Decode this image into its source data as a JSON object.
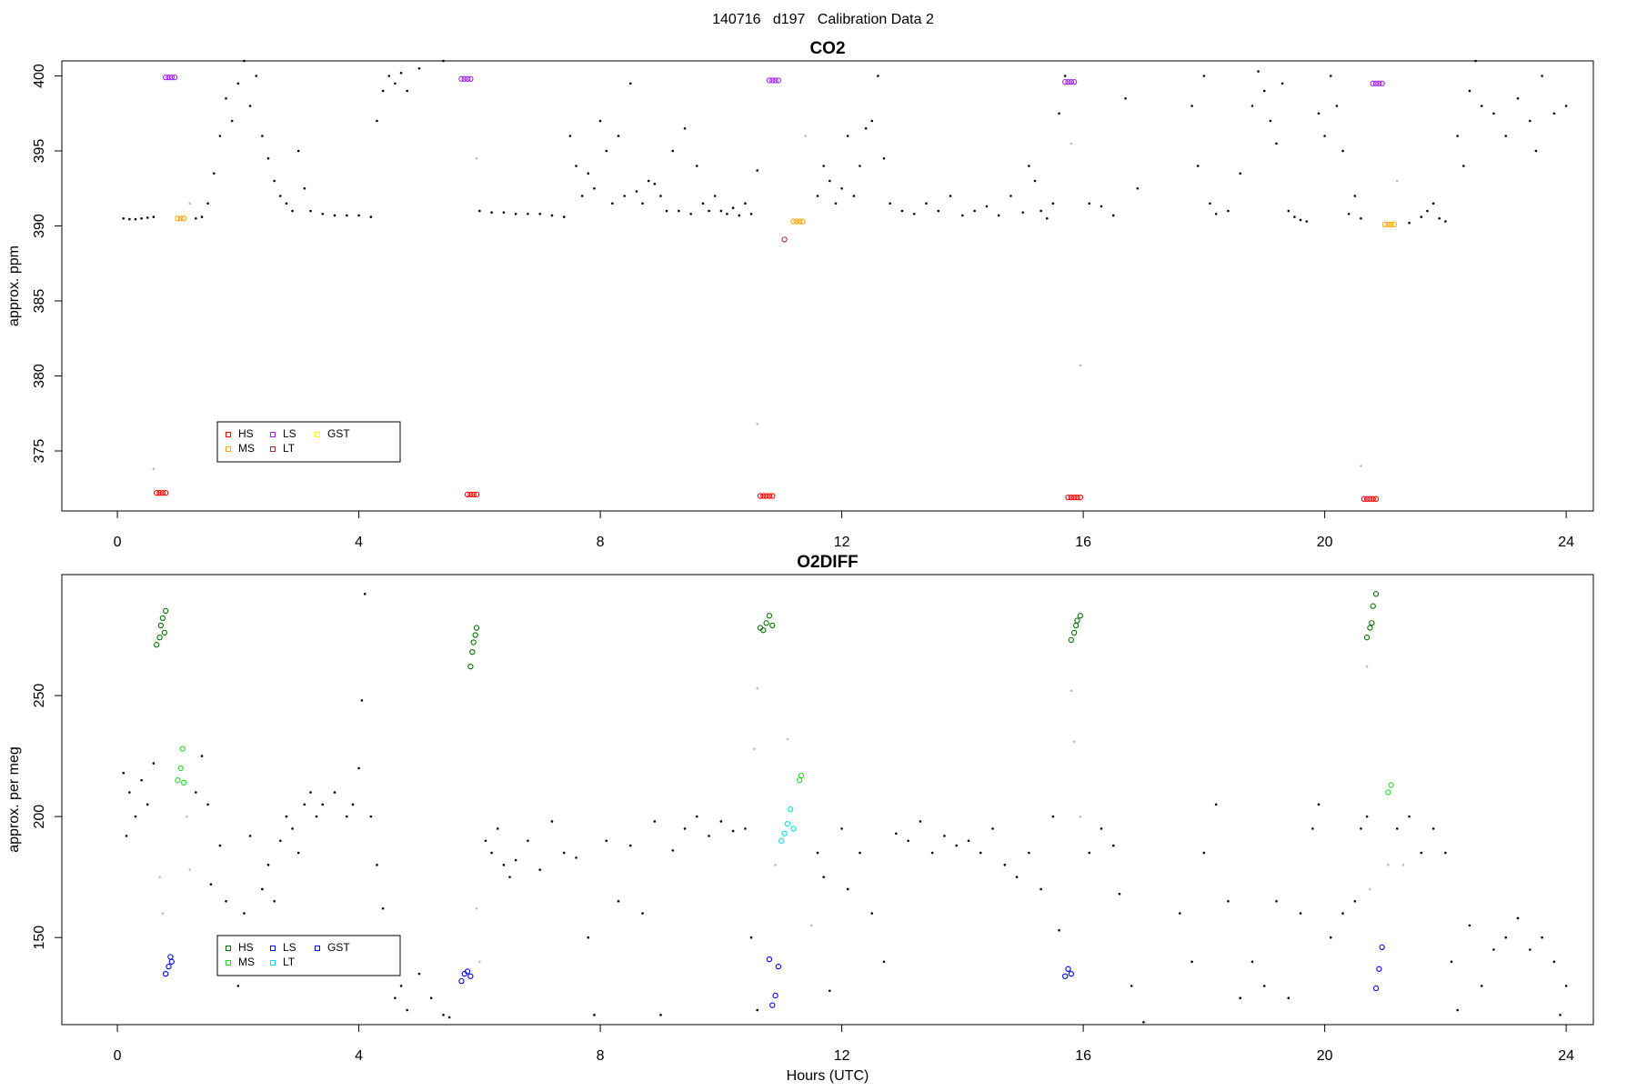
{
  "title": "140716   d197   Calibration Data 2",
  "chart_data": [
    {
      "type": "scatter",
      "title": "CO2",
      "ylabel": "approx. ppm",
      "xlim": [
        -0.92,
        24.45
      ],
      "xticks": [
        0,
        4,
        8,
        12,
        16,
        20,
        24
      ],
      "ylim": [
        371,
        401
      ],
      "yticks": [
        375,
        380,
        385,
        390,
        395,
        400
      ],
      "series": [
        {
          "color": "#000000",
          "x": [
            0.1,
            0.2,
            0.3,
            0.4,
            0.5,
            0.6,
            1.3,
            1.4,
            1.5,
            1.6,
            1.7,
            1.8,
            1.9,
            2.0,
            2.1,
            2.2,
            2.3,
            2.4,
            2.5,
            2.6,
            2.7,
            2.8,
            2.9,
            3.0,
            3.1,
            3.2,
            3.4,
            3.6,
            3.8,
            4.0,
            4.2,
            4.3,
            4.4,
            4.5,
            4.6,
            4.7,
            4.8,
            5.0,
            5.4,
            6.0,
            6.2,
            6.4,
            6.6,
            6.8,
            7.0,
            7.2,
            7.4,
            7.5,
            7.6,
            7.7,
            7.8,
            7.9,
            8.0,
            8.1,
            8.2,
            8.3,
            8.4,
            8.5,
            8.6,
            8.7,
            8.8,
            8.9,
            9.0,
            9.1,
            9.2,
            9.3,
            9.4,
            9.5,
            9.6,
            9.7,
            9.8,
            9.9,
            10.0,
            10.1,
            10.2,
            10.3,
            10.4,
            10.5,
            10.6,
            11.6,
            11.7,
            11.8,
            11.9,
            12.0,
            12.1,
            12.2,
            12.3,
            12.4,
            12.5,
            12.6,
            12.7,
            12.8,
            13.0,
            13.2,
            13.4,
            13.6,
            13.8,
            14.0,
            14.2,
            14.4,
            14.6,
            14.8,
            15.0,
            15.1,
            15.2,
            15.3,
            15.4,
            15.5,
            15.6,
            15.7,
            16.1,
            16.3,
            16.5,
            16.7,
            16.9,
            17.8,
            17.9,
            18.0,
            18.1,
            18.2,
            18.4,
            18.6,
            18.8,
            18.9,
            19.0,
            19.1,
            19.2,
            19.3,
            19.4,
            19.5,
            19.6,
            19.7,
            19.9,
            20.0,
            20.1,
            20.2,
            20.3,
            20.4,
            20.5,
            20.6,
            21.4,
            21.6,
            21.7,
            21.8,
            21.9,
            22.0,
            22.2,
            22.3,
            22.4,
            22.5,
            22.6,
            22.8,
            23.0,
            23.2,
            23.4,
            23.5,
            23.6,
            23.8,
            24.0
          ],
          "values": [
            390.5,
            390.45,
            390.45,
            390.5,
            390.55,
            390.6,
            390.5,
            390.6,
            391.5,
            393.5,
            396,
            398.5,
            397,
            399.5,
            401,
            398,
            400,
            396,
            394.5,
            393,
            392,
            391.5,
            391,
            395,
            392.5,
            391,
            390.8,
            390.7,
            390.7,
            390.7,
            390.6,
            397,
            399,
            400,
            399.5,
            400.2,
            399,
            400.5,
            401,
            391,
            390.9,
            390.9,
            390.8,
            390.8,
            390.8,
            390.7,
            390.6,
            396,
            394,
            392,
            393.5,
            392.5,
            397,
            395,
            391.5,
            396,
            392,
            399.5,
            392.3,
            391.5,
            393,
            392.8,
            392,
            391,
            395,
            391,
            396.5,
            390.8,
            394,
            391.5,
            391,
            392,
            391,
            390.8,
            391.2,
            390.7,
            391.5,
            390.8,
            393.7,
            392,
            394,
            393,
            391.5,
            392.5,
            396,
            392,
            394,
            396.5,
            397,
            400,
            394.5,
            391.5,
            391,
            390.8,
            391.5,
            391,
            392,
            390.7,
            391,
            391.3,
            390.7,
            392,
            390.9,
            394,
            393,
            391,
            390.5,
            391.5,
            397.5,
            400,
            391.5,
            391.3,
            390.7,
            398.5,
            392.5,
            398,
            394,
            400,
            391.5,
            390.8,
            391,
            393.5,
            398,
            400.3,
            399,
            397,
            395.5,
            399.5,
            391,
            390.6,
            390.4,
            390.3,
            397.5,
            396,
            400,
            398,
            395,
            390.8,
            392,
            390.5,
            390.2,
            390.6,
            391,
            391.5,
            390.5,
            390.3,
            396,
            394,
            399,
            401,
            398,
            397.5,
            396,
            398.5,
            397,
            395,
            400,
            397.5,
            398
          ]
        },
        {
          "color": "#bbbbbb",
          "x": [
            0.6,
            1.2,
            5.95,
            10.6,
            11.4,
            15.8,
            15.95,
            20.6,
            21.2
          ],
          "values": [
            373.8,
            391.5,
            394.5,
            376.8,
            396,
            395.5,
            380.7,
            374,
            393
          ]
        },
        {
          "name": "HS",
          "color": "#ff0000",
          "x": [
            0.65,
            0.7,
            0.75,
            0.8,
            5.8,
            5.85,
            5.9,
            5.95,
            10.65,
            10.7,
            10.75,
            10.8,
            10.85,
            15.75,
            15.8,
            15.85,
            15.9,
            15.95,
            20.65,
            20.7,
            20.75,
            20.8,
            20.85
          ],
          "values": [
            372.2,
            372.2,
            372.2,
            372.2,
            372.1,
            372.1,
            372.1,
            372.1,
            372.0,
            372.0,
            372.0,
            372.0,
            372.0,
            371.9,
            371.9,
            371.9,
            371.9,
            371.9,
            371.8,
            371.8,
            371.8,
            371.8,
            371.8
          ]
        },
        {
          "name": "MS",
          "color": "#ffa500",
          "x": [
            1.0,
            1.05,
            1.1,
            11.2,
            11.25,
            11.3,
            11.35,
            21.0,
            21.05,
            21.1,
            21.15
          ],
          "values": [
            390.5,
            390.5,
            390.5,
            390.3,
            390.3,
            390.3,
            390.3,
            390.1,
            390.1,
            390.1,
            390.1
          ]
        },
        {
          "name": "LS",
          "color": "#a020f0",
          "x": [
            0.8,
            0.85,
            0.9,
            0.95,
            5.7,
            5.75,
            5.8,
            5.85,
            10.8,
            10.85,
            10.9,
            10.95,
            15.7,
            15.75,
            15.8,
            15.85,
            20.8,
            20.85,
            20.9,
            20.95
          ],
          "values": [
            399.9,
            399.9,
            399.9,
            399.9,
            399.8,
            399.8,
            399.8,
            399.8,
            399.7,
            399.7,
            399.7,
            399.7,
            399.6,
            399.6,
            399.6,
            399.6,
            399.5,
            399.5,
            399.5,
            399.5
          ]
        },
        {
          "name": "LT",
          "color": "#a52a2a",
          "x": [
            11.05
          ],
          "values": [
            389.1
          ]
        },
        {
          "name": "GST",
          "color": "#ffff00",
          "x": [],
          "values": []
        }
      ]
    },
    {
      "type": "scatter",
      "title": "O2DIFF",
      "ylabel": "approx. per meg",
      "xlabel": "Hours (UTC)",
      "xlim": [
        -0.92,
        24.45
      ],
      "xticks": [
        0,
        4,
        8,
        12,
        16,
        20,
        24
      ],
      "ylim": [
        114,
        300
      ],
      "yticks": [
        150,
        200,
        250
      ],
      "series": [
        {
          "color": "#000000",
          "x": [
            0.1,
            0.15,
            0.2,
            0.3,
            0.4,
            0.5,
            0.6,
            1.3,
            1.4,
            1.5,
            1.55,
            1.7,
            1.8,
            1.9,
            2.0,
            2.1,
            2.2,
            2.3,
            2.4,
            2.5,
            2.6,
            2.7,
            2.8,
            2.9,
            3.0,
            3.1,
            3.2,
            3.3,
            3.4,
            3.6,
            3.8,
            3.9,
            4.0,
            4.05,
            4.1,
            4.2,
            4.3,
            4.4,
            4.5,
            4.6,
            4.7,
            4.8,
            5.0,
            5.2,
            5.4,
            5.5,
            6.1,
            6.2,
            6.3,
            6.4,
            6.5,
            6.6,
            6.8,
            7.0,
            7.2,
            7.4,
            7.6,
            7.8,
            7.9,
            8.1,
            8.3,
            8.5,
            8.7,
            8.9,
            9.0,
            9.2,
            9.4,
            9.6,
            9.8,
            10.0,
            10.2,
            10.4,
            10.5,
            10.6,
            11.6,
            11.7,
            11.8,
            12.0,
            12.1,
            12.3,
            12.5,
            12.7,
            12.9,
            13.1,
            13.3,
            13.5,
            13.7,
            13.9,
            14.1,
            14.3,
            14.5,
            14.7,
            14.9,
            15.1,
            15.3,
            15.5,
            15.6,
            16.1,
            16.3,
            16.5,
            16.6,
            16.8,
            17.0,
            17.6,
            17.8,
            18.0,
            18.2,
            18.4,
            18.6,
            18.8,
            19.0,
            19.2,
            19.4,
            19.6,
            19.8,
            19.9,
            20.1,
            20.3,
            20.5,
            20.6,
            20.7,
            21.2,
            21.4,
            21.6,
            21.8,
            22.0,
            22.1,
            22.2,
            22.4,
            22.6,
            22.8,
            23.0,
            23.2,
            23.4,
            23.6,
            23.8,
            23.9,
            24.0
          ],
          "values": [
            218,
            192,
            210,
            200,
            215,
            205,
            222,
            210,
            225,
            205,
            172,
            188,
            165,
            145,
            130,
            160,
            192,
            150,
            170,
            180,
            165,
            190,
            200,
            195,
            185,
            205,
            210,
            200,
            205,
            210,
            200,
            205,
            220,
            248,
            292,
            200,
            180,
            162,
            140,
            125,
            130,
            120,
            135,
            125,
            118,
            117,
            190,
            185,
            195,
            180,
            175,
            182,
            190,
            178,
            198,
            185,
            183,
            150,
            118,
            190,
            165,
            188,
            160,
            198,
            118,
            186,
            195,
            200,
            192,
            198,
            194,
            195,
            150,
            120,
            185,
            175,
            128,
            195,
            170,
            185,
            160,
            140,
            193,
            190,
            198,
            185,
            192,
            188,
            190,
            185,
            195,
            180,
            175,
            185,
            170,
            200,
            153,
            185,
            195,
            188,
            168,
            130,
            115,
            160,
            140,
            185,
            205,
            165,
            125,
            140,
            130,
            165,
            125,
            160,
            195,
            205,
            150,
            160,
            165,
            195,
            200,
            195,
            200,
            185,
            195,
            185,
            140,
            120,
            155,
            130,
            145,
            150,
            158,
            145,
            150,
            140,
            118,
            130
          ]
        },
        {
          "color": "#bbbbbb",
          "x": [
            0.7,
            0.75,
            1.15,
            1.2,
            5.95,
            6.0,
            10.55,
            10.6,
            10.9,
            11.1,
            11.5,
            15.8,
            15.85,
            15.95,
            20.7,
            20.75,
            21.05,
            21.3
          ],
          "values": [
            175,
            160,
            200,
            178,
            162,
            140,
            228,
            253,
            180,
            232,
            155,
            252,
            231,
            200,
            262,
            170,
            180,
            180
          ]
        },
        {
          "name": "HS",
          "color": "#007000",
          "x": [
            0.65,
            0.7,
            0.72,
            0.75,
            0.78,
            0.8,
            5.85,
            5.88,
            5.9,
            5.93,
            5.95,
            10.65,
            10.7,
            10.75,
            10.8,
            10.85,
            15.8,
            15.85,
            15.88,
            15.9,
            15.95,
            20.7,
            20.75,
            20.78,
            20.8,
            20.85
          ],
          "values": [
            271,
            274,
            279,
            282,
            276,
            285,
            262,
            268,
            272,
            275,
            278,
            278,
            277,
            280,
            283,
            279,
            273,
            276,
            279,
            281,
            283,
            274,
            278,
            280,
            287,
            292
          ]
        },
        {
          "name": "MS",
          "color": "#22dd22",
          "x": [
            1.0,
            1.05,
            1.08,
            1.1,
            11.3,
            11.33,
            21.05,
            21.1
          ],
          "values": [
            215,
            220,
            228,
            214,
            215,
            217,
            210,
            213
          ]
        },
        {
          "name": "LS",
          "color": "#0000ff",
          "x": [
            0.8,
            0.85,
            0.88,
            0.9,
            5.7,
            5.75,
            5.8,
            5.85,
            10.8,
            10.85,
            10.9,
            10.95,
            15.7,
            15.75,
            15.8,
            20.85,
            20.9,
            20.95
          ],
          "values": [
            135,
            138,
            142,
            140,
            132,
            135,
            136,
            134,
            141,
            122,
            126,
            138,
            134,
            137,
            135,
            129,
            137,
            146
          ]
        },
        {
          "name": "LT",
          "color": "#00e5e5",
          "x": [
            11.0,
            11.05,
            11.1,
            11.15,
            11.2
          ],
          "values": [
            190,
            193,
            197,
            203,
            195
          ]
        },
        {
          "name": "GST",
          "color": "#0000ff",
          "x": [],
          "values": []
        }
      ]
    }
  ]
}
